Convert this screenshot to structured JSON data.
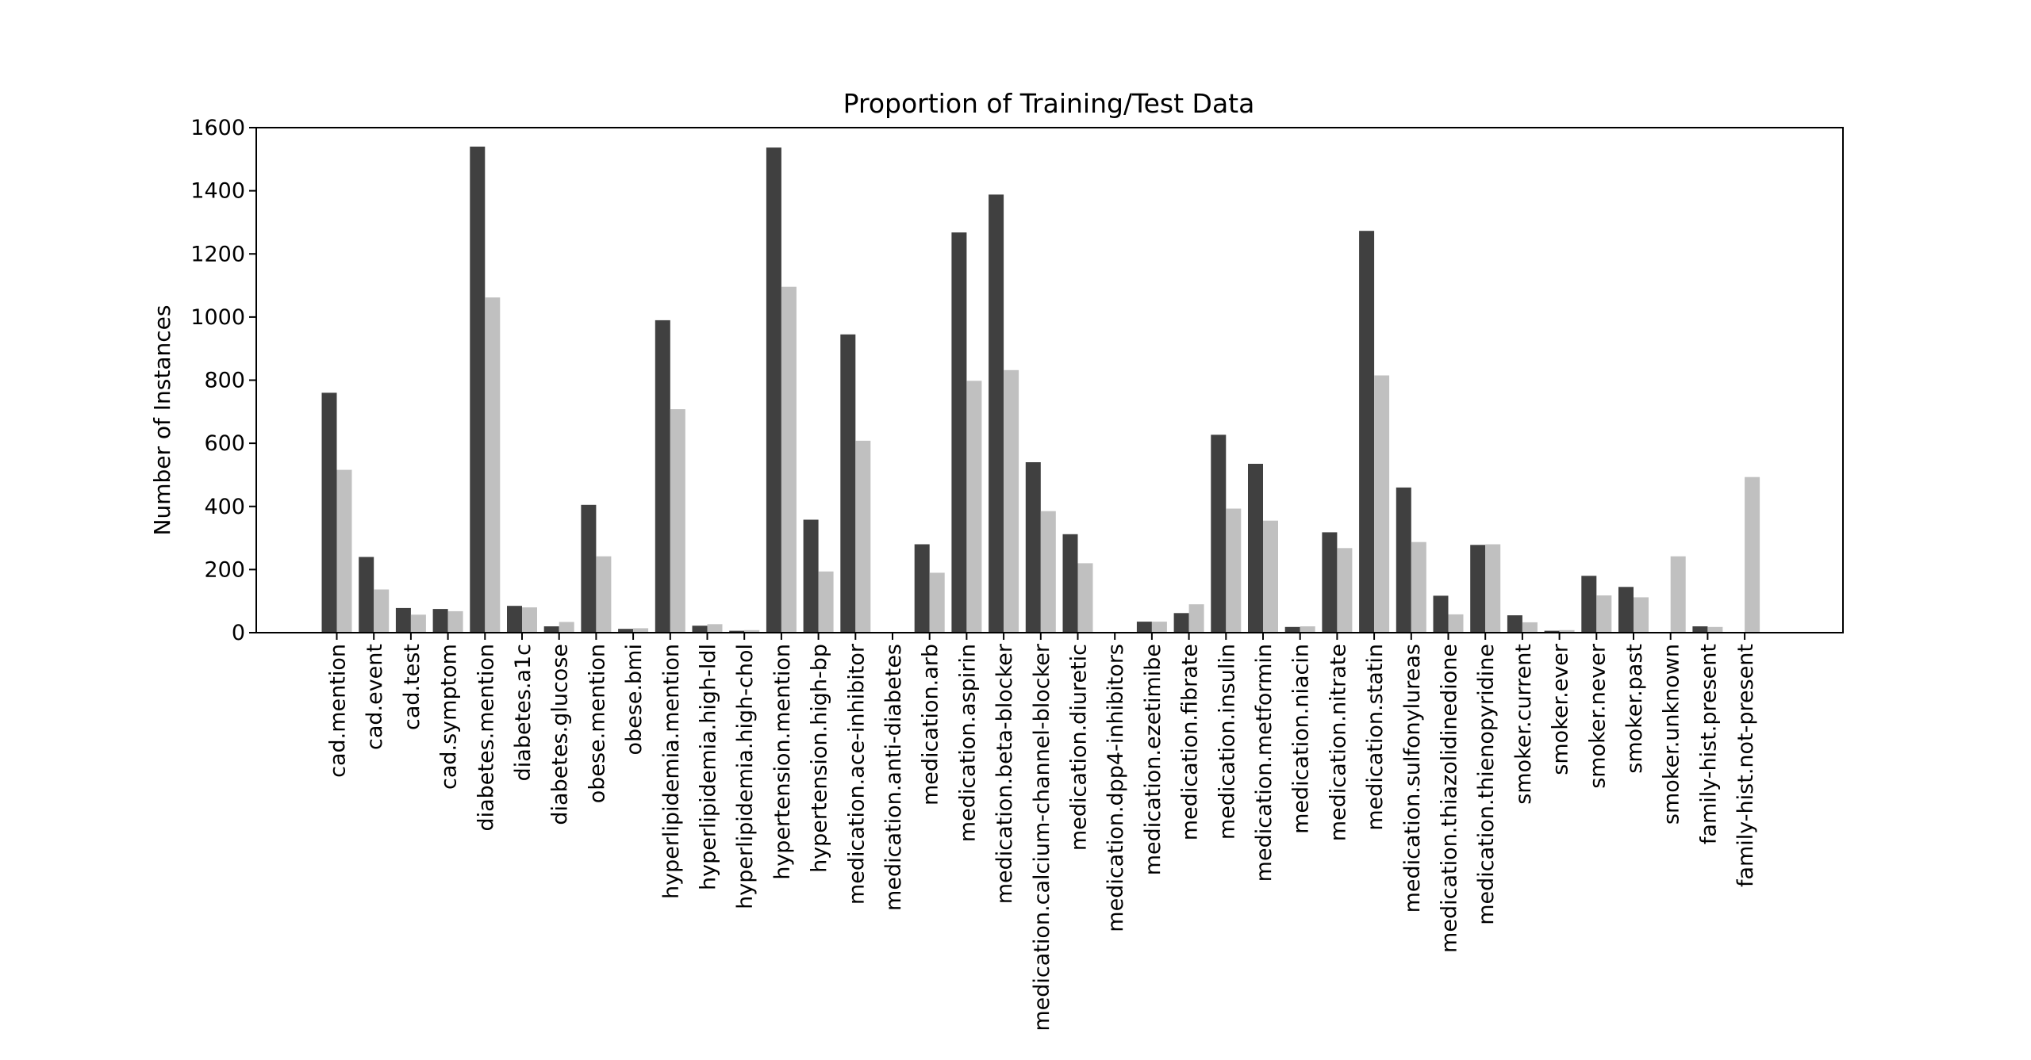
{
  "chart_data": {
    "type": "bar",
    "title": "Proportion of Training/Test Data",
    "xlabel": "",
    "ylabel": "Number of Instances",
    "ylim": [
      0,
      1600
    ],
    "yticks": [
      0,
      200,
      400,
      600,
      800,
      1000,
      1200,
      1400,
      1600
    ],
    "grid": false,
    "legend": "none",
    "categories": [
      "cad.mention",
      "cad.event",
      "cad.test",
      "cad.symptom",
      "diabetes.mention",
      "diabetes.a1c",
      "diabetes.glucose",
      "obese.mention",
      "obese.bmi",
      "hyperlipidemia.mention",
      "hyperlipidemia.high-ldl",
      "hyperlipidemia.high-chol",
      "hypertension.mention",
      "hypertension.high-bp",
      "medication.ace-inhibitor",
      "medication.anti-diabetes",
      "medication.arb",
      "medication.aspirin",
      "medication.beta-blocker",
      "medication.calcium-channel-blocker",
      "medication.diuretic",
      "medication.dpp4-inhibitors",
      "medication.ezetimibe",
      "medication.fibrate",
      "medication.insulin",
      "medication.metformin",
      "medication.niacin",
      "medication.nitrate",
      "medication.statin",
      "medication.sulfonylureas",
      "medication.thiazolidinedione",
      "medication.thienopyridine",
      "smoker.current",
      "smoker.ever",
      "smoker.never",
      "smoker.past",
      "smoker.unknown",
      "family-hist.present",
      "family-hist.not-present"
    ],
    "series": [
      {
        "color": "#404040",
        "values": [
          760,
          240,
          78,
          75,
          1540,
          85,
          20,
          405,
          12,
          990,
          22,
          6,
          1537,
          358,
          945,
          0,
          280,
          1268,
          1388,
          540,
          312,
          0,
          35,
          62,
          627,
          535,
          18,
          318,
          1273,
          460,
          117,
          278,
          55,
          6,
          180,
          145,
          0,
          20,
          0
        ]
      },
      {
        "color": "#c0c0c0",
        "values": [
          516,
          137,
          57,
          68,
          1062,
          80,
          34,
          242,
          14,
          708,
          27,
          8,
          1096,
          194,
          608,
          0,
          190,
          798,
          832,
          385,
          220,
          0,
          35,
          90,
          393,
          355,
          20,
          268,
          815,
          287,
          58,
          280,
          33,
          8,
          118,
          112,
          242,
          18,
          493
        ]
      }
    ]
  }
}
